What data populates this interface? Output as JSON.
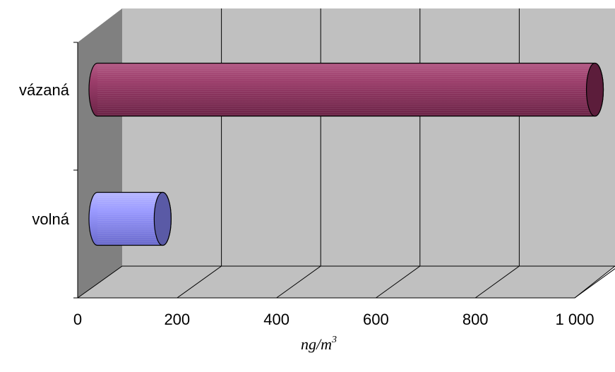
{
  "chart_data": {
    "type": "bar",
    "orientation": "horizontal",
    "style": "3d-cylinder",
    "categories": [
      "volná",
      "vázaná"
    ],
    "values": [
      135,
      1030
    ],
    "xlabel": "ng/m",
    "xlabel_superscript": "3",
    "xlim": [
      0,
      1000
    ],
    "xticks": [
      0,
      200,
      400,
      600,
      800,
      1000
    ],
    "xtick_labels": [
      "0",
      "200",
      "400",
      "600",
      "800",
      "1 000"
    ],
    "grid": true,
    "legend": "none",
    "colors": {
      "volná": "#9999ff",
      "vázaná": "#993366",
      "wall": "#c0c0c0",
      "side_wall": "#808080"
    }
  }
}
